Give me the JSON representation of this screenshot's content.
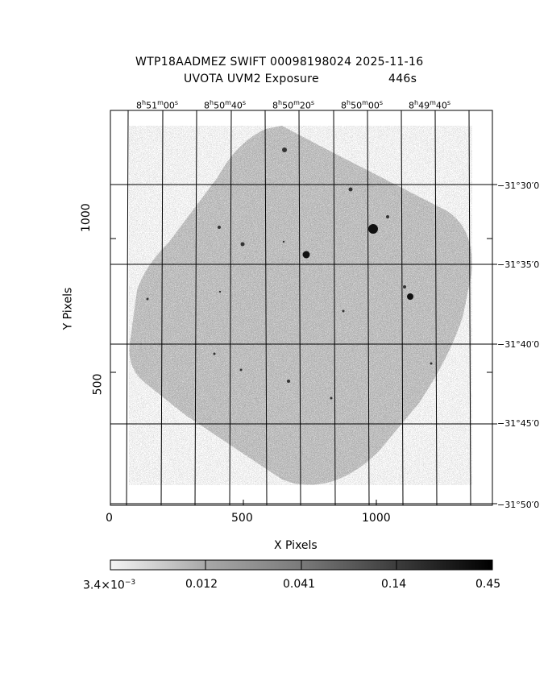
{
  "title": {
    "line1": "WTP18AADMEZ SWIFT 00098198024 2025-11-16",
    "line2_instrument": "UVOTA UVM2 Exposure",
    "line2_exposure": "446s"
  },
  "axes": {
    "xlabel": "X Pixels",
    "ylabel": "Y Pixels",
    "x_ticks": [
      "0",
      "500",
      "1000"
    ],
    "y_ticks": [
      "500",
      "1000"
    ]
  },
  "ra_labels": [
    {
      "h": "8",
      "m": "51",
      "s": "00"
    },
    {
      "h": "8",
      "m": "50",
      "s": "40"
    },
    {
      "h": "8",
      "m": "50",
      "s": "20"
    },
    {
      "h": "8",
      "m": "50",
      "s": "00"
    },
    {
      "h": "8",
      "m": "49",
      "s": "40"
    }
  ],
  "dec_labels": [
    "−31°30′0",
    "−31°35′0",
    "−31°40′0",
    "−31°45′0",
    "−31°50′0"
  ],
  "colorbar": {
    "tick_labels": [
      "3.4×10",
      "0.012",
      "0.041",
      "0.14",
      "0.45"
    ],
    "first_exponent": "−3"
  },
  "image_description_colors": {
    "background": "#ffffff",
    "pixel_noise": "#8a8a8a",
    "stars": "#000000"
  }
}
